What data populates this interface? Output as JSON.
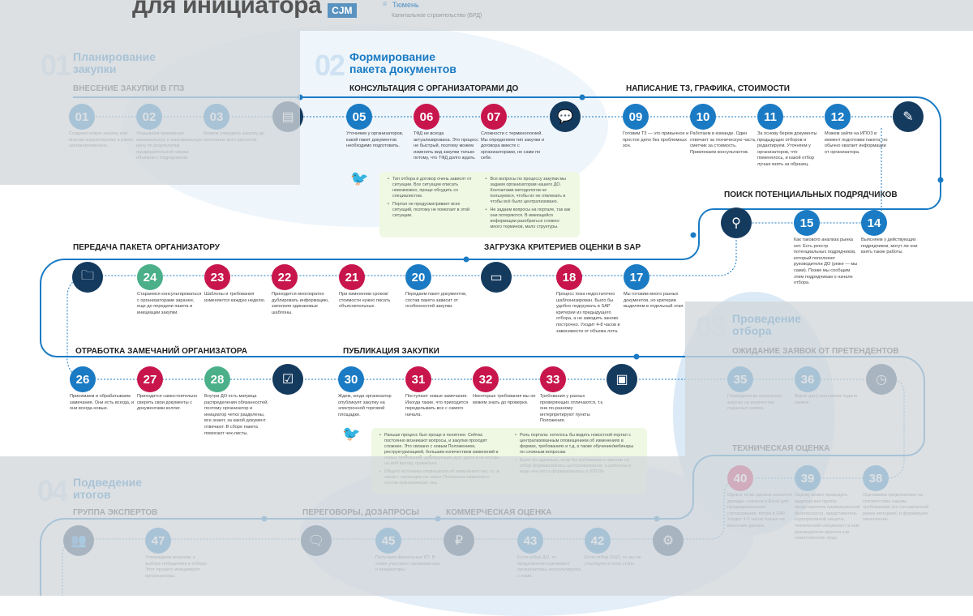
{
  "header": {
    "title": "для инициатора",
    "badge": "CJM",
    "city": "Тюмень",
    "category": "Капитальное строительство (БРД)"
  },
  "colors": {
    "blue": "#1a7bc4",
    "red": "#c8164d",
    "green": "#4bb08a",
    "navy": "#143a5e",
    "note": "#eef8e3"
  },
  "sections": [
    {
      "num": "01",
      "title1": "Планирование",
      "title2": "закупки"
    },
    {
      "num": "02",
      "title1": "Формирование",
      "title2": "пакета документов"
    },
    {
      "num": "03",
      "title1": "Проведение",
      "title2": "отбора"
    },
    {
      "num": "04",
      "title1": "Подведение",
      "title2": "итогов"
    }
  ],
  "stages": [
    "ВНЕСЕНИЕ ЗАКУПКИ В ГПЗ",
    "КОНСУЛЬТАЦИЯ С ОРГАНИЗАТОРАМИ ДО",
    "НАПИСАНИЕ ТЗ, ГРАФИКА, СТОИМОСТИ",
    "ПОИСК ПОТЕНЦИАЛЬНЫХ ПОДРЯДЧИКОВ",
    "ПЕРЕДАЧА ПАКЕТА ОРГАНИЗАТОРУ",
    "ЗАГРУЗКА КРИТЕРИЕВ ОЦЕНКИ В SAP",
    "ОТРАБОТКА ЗАМЕЧАНИЙ ОРГАНИЗАТОРА",
    "ПУБЛИКАЦИЯ ЗАКУПКИ",
    "ОЖИДАНИЕ ЗАЯВОК ОТ ПРЕТЕНДЕНТОВ",
    "ТЕХНИЧЕСКАЯ ОЦЕНКА",
    "ГРУППА ЭКСПЕРТОВ",
    "ПЕРЕГОВОРЫ, ДОЗАПРОСЫ",
    "КОММЕРЧЕСКАЯ ОЦЕНКА"
  ],
  "steps": [
    {
      "n": "01",
      "c": "blue",
      "t": "Создаем новую закупку или вносим корректировку в ранее запланированную."
    },
    {
      "n": "02",
      "c": "blue",
      "t": "Указываем примерную минимальную и максимальную цену по результатам предварительной сверки объемов с подрядчиком."
    },
    {
      "n": "03",
      "c": "blue",
      "t": "Можем утвердить закупку до окончания всех расчетов."
    },
    {
      "n": "05",
      "c": "blue",
      "t": "Уточняем у организаторов, какой пакет документов необходимо подготовить."
    },
    {
      "n": "06",
      "c": "red",
      "t": "ТФД не всегда актуализирована. Это процесс не быстрый, поэтому можем изменить вид закупки только потому, что ТФД долго ждать."
    },
    {
      "n": "07",
      "c": "red",
      "t": "Сложности с терминологией. Мы определяем тип закупки и договора вместе с организаторами, не сами по себе."
    },
    {
      "n": "09",
      "c": "blue",
      "t": "Готовим ТЗ — это привычное и простое дело без проблемных зон."
    },
    {
      "n": "10",
      "c": "blue",
      "t": "Работаем в команде. Один отвечает за техническую часть, сметчик за стоимость. Привлекаем консультантов."
    },
    {
      "n": "11",
      "c": "blue",
      "t": "За основу берем документы предыдущих отборов и редактируем. Уточняем у организаторов, что поменялось, и какой отбор лучше взять за образец."
    },
    {
      "n": "12",
      "c": "blue",
      "t": "Можем зайти на ИПОЗ в момент подготовки пакета, но обычно хватает информации от организатора."
    },
    {
      "n": "14",
      "c": "blue",
      "t": "Выясняем у действующих подрядчиков, могут ли они взять такие работы."
    },
    {
      "n": "15",
      "c": "blue",
      "t": "Как такового анализа рынка нет. Есть реестр потенциальных подрядчиков, который пополняют руководители ДО (реже — мы сами). Позже мы сообщим этим подрядчикам о начале отбора."
    },
    {
      "n": "17",
      "c": "blue",
      "t": "Мы готовим много разных документов, но критерии выделяем в отдельный этап."
    },
    {
      "n": "18",
      "c": "red",
      "t": "Процесс пока недостаточно шаблонизирован. Было бы удобно подгружать в SAP критерии из предыдущего отбора, а не заводить заново построчно. Уходит 4-8 часов в зависимости от объема лота."
    },
    {
      "n": "20",
      "c": "blue",
      "t": "Передаем пакет документов, состав пакета зависит от особенностей закупки."
    },
    {
      "n": "21",
      "c": "red",
      "t": "При изменении сроков/стоимости нужно писать объяснительные."
    },
    {
      "n": "22",
      "c": "red",
      "t": "Приходится многократно дублировать информацию, заполняя одинаковые шаблоны."
    },
    {
      "n": "23",
      "c": "red",
      "t": "Шаблоны и требования изменяются каждую неделю."
    },
    {
      "n": "24",
      "c": "green",
      "t": "Стараемся консультироваться с организаторами заранее, еще до передачи пакета и инициации закупки."
    },
    {
      "n": "26",
      "c": "blue",
      "t": "Принимаем и обрабатываем замечания. Они есть всегда, и они всегда новые."
    },
    {
      "n": "27",
      "c": "red",
      "t": "Приходится самостоятельно сверять свои документы с документами коллег."
    },
    {
      "n": "28",
      "c": "green",
      "t": "Внутри ДО есть матрица распределения обязанностей, поэтому организатор и инициатор четко разделены, все знают, за какой документ отвечают. В сборе пакета помогают чек-листы."
    },
    {
      "n": "30",
      "c": "blue",
      "t": "Ждем, когда организатор опубликует закупку на электронной торговой площадке."
    },
    {
      "n": "31",
      "c": "red",
      "t": "Поступают новые замечания. Иногда такие, что приходится переделывать все с самого начала."
    },
    {
      "n": "32",
      "c": "red",
      "t": "Некоторые требования мы не можем знать до проверки."
    },
    {
      "n": "33",
      "c": "red",
      "t": "Требования у разных проверяющих отличаются, т.к. они по-разному интерпретируют пункты Положения."
    },
    {
      "n": "35",
      "c": "blue",
      "t": "Периодически проверяем закупку на количество поданных заявок."
    },
    {
      "n": "36",
      "c": "blue",
      "t": "Ждем дату окончания подачи заявок."
    },
    {
      "n": "38",
      "c": "blue",
      "t": "Оцениваем предложения на соответствие нашим требованиям (по составленной ранее методике) и формируем заключение."
    },
    {
      "n": "39",
      "c": "blue",
      "t": "Оценку может проводить аудиторская группа: представитель промышленной безопасности, представитель корпоративной защиты, технический специалист и зам. руководителя проекта как ответственное лицо."
    },
    {
      "n": "40",
      "c": "red",
      "t": "Одни и те же данные вносятся дважды: сначала в Excel для предварительного согласования, потом в SAP. Уходит 4-5 часов только на внесение данных."
    },
    {
      "n": "42",
      "c": "blue",
      "t": "Если отбор ОЦО, то мы не участвуем в этом этапе."
    },
    {
      "n": "43",
      "c": "blue",
      "t": "Если отбор ДО, то предложения оценивают организаторы, консультируясь с нами."
    },
    {
      "n": "45",
      "c": "blue",
      "t": "Получаем финальные КП. В этапе участвуют организаторы и инициаторы."
    },
    {
      "n": "47",
      "c": "blue",
      "t": "Утверждаем решение о выборе победителя в отборе. Этот процесс инициируют организаторы."
    }
  ],
  "icons": [
    "document-certificate-icon",
    "chat-icon",
    "pencil-icon",
    "user-search-icon",
    "folder-settings-icon",
    "browser-upload-icon",
    "checklist-icon",
    "browser-check-icon",
    "clock-refresh-icon",
    "gear-icon",
    "team-icon",
    "user-chat-icon",
    "ruble-icon"
  ],
  "notes": [
    {
      "left": [
        "Тип отбора и договор очень зависят от ситуации. Все ситуации описать невозможно, проще обсудить со специалистом.",
        "Портал не предусматривает всех ситуаций, поэтому не помогает в этой ситуации."
      ],
      "right": [
        "Все вопросы по процессу закупки мы задаем организаторам нашего ДО. Контактами методологов не пользуемся, чтобы их не отвлекать и чтобы всё было централизовано.",
        "Не задаем вопросы на портале, так как они потеряются. В имеющейся информации разобраться сложно: много терминов, мало структуры."
      ]
    },
    {
      "left": [
        "Раньше процесс был проще и понятнее. Сейчас постоянно возникают вопросы, и закупки проходят сложнее. Это связано с новым Положением, реструктуризацией, большим количеством изменений и новых требований, дублирующих друг друга и не всегда, на мой взгляд, правильно",
        "Общего источника оповещения об изменениях нет, т.к. в связи с переходом на новое Положение изменился состав принимающих лиц."
      ],
      "right": [
        "Роль портала: хотелось бы видеть новостной портал с централизованным оповещением об изменениях в формах, требованиях и т.д, а также обучение/вебинары по сложным вопросам.",
        "Было бы идеально, если бы требования к пакетам на отбор формировались централизованно, а шаблоны в виде чек-листа формировались в ИПОЗе"
      ]
    }
  ]
}
